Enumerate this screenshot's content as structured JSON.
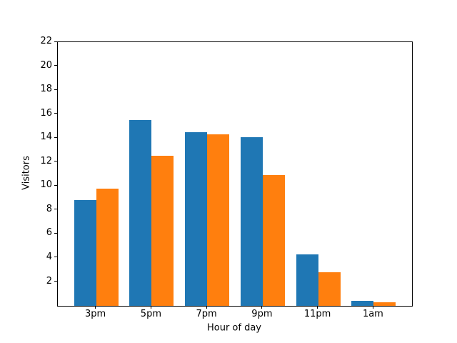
{
  "figure": {
    "background": "#ffffff",
    "text_color": "#000000"
  },
  "chart_data": {
    "type": "bar",
    "title": "",
    "xlabel": "Hour of day",
    "ylabel": "Visitors",
    "categories": [
      "3pm",
      "5pm",
      "7pm",
      "9pm",
      "11pm",
      "1am"
    ],
    "series": [
      {
        "name": "blue",
        "color": "#1f77b4",
        "values": [
          8.8,
          15.5,
          14.5,
          14.1,
          4.3,
          0.4
        ]
      },
      {
        "name": "orange",
        "color": "#ff7f0e",
        "values": [
          9.8,
          12.5,
          14.3,
          10.9,
          2.8,
          0.3
        ]
      }
    ],
    "ylim": [
      0,
      22
    ],
    "yticks": [
      2,
      4,
      6,
      8,
      10,
      12,
      14,
      16,
      18,
      20,
      22
    ],
    "xlim": [
      -0.69,
      5.69
    ],
    "bar_width_units": 0.4,
    "grid": false,
    "legend": null
  }
}
